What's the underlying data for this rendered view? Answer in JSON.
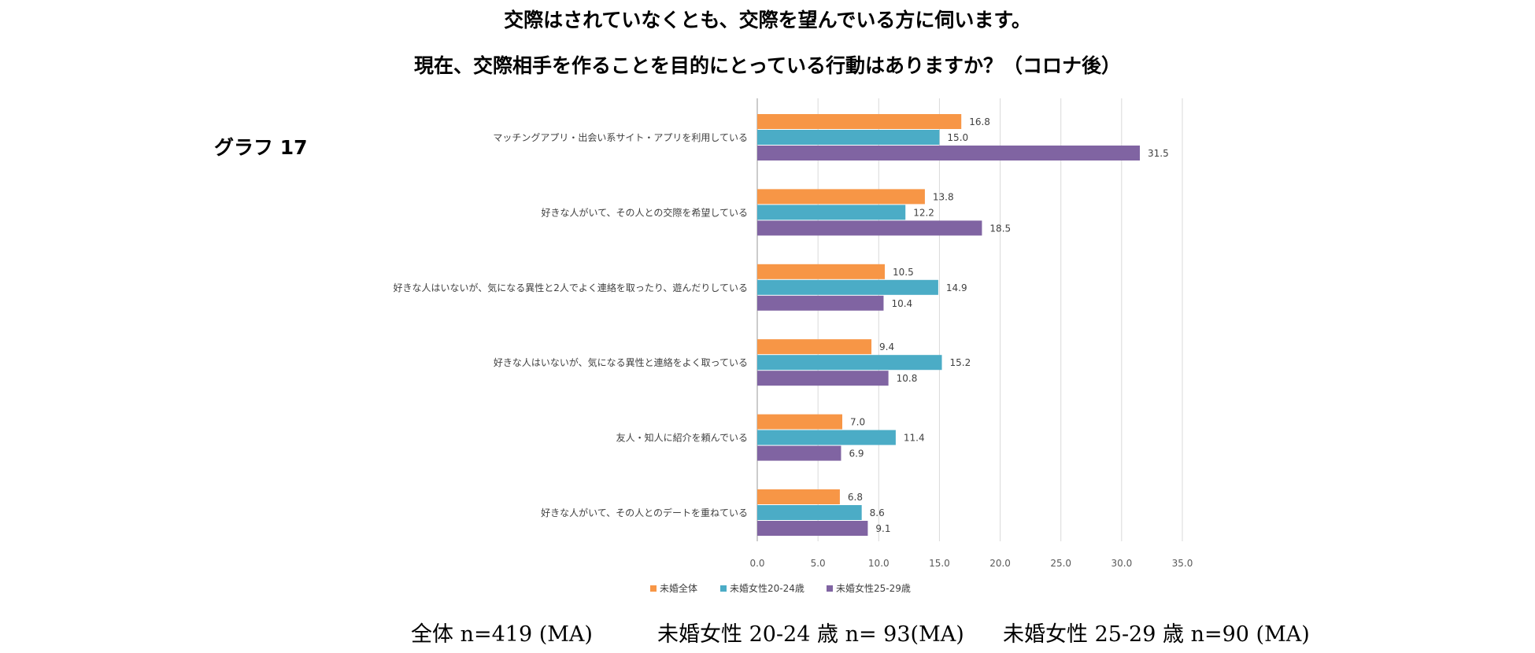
{
  "title_line1": "交際はされていなくとも、交際を望んでいる方に伺います。",
  "title_line2": "現在、交際相手を作ることを目的にとっている行動はありますか？（コロナ後）",
  "graph_label": "グラフ 17",
  "footer": [
    "全体 n=419 (MA)",
    "未婚女性 20-24 歳 n= 93(MA)",
    "未婚女性 25-29 歳 n=90 (MA)"
  ],
  "chart_data": {
    "type": "bar",
    "orientation": "horizontal",
    "title": "現在、交際相手を作ることを目的にとっている行動はありますか？（コロナ後）",
    "xlim": [
      0,
      35
    ],
    "xticks": [
      "0.0",
      "5.0",
      "10.0",
      "15.0",
      "20.0",
      "25.0",
      "30.0",
      "35.0"
    ],
    "grid": true,
    "legend_position": "bottom",
    "categories": [
      "マッチングアプリ・出会い系サイト・アプリを利用している",
      "好きな人がいて、その人との交際を希望している",
      "好きな人はいないが、気になる異性と2人でよく連絡を取ったり、遊んだりしている",
      "好きな人はいないが、気になる異性と連絡をよく取っている",
      "友人・知人に紹介を頼んでいる",
      "好きな人がいて、その人とのデートを重ねている"
    ],
    "series": [
      {
        "name": "未婚全体",
        "color": "#F79646",
        "values": [
          16.8,
          13.8,
          10.5,
          9.4,
          7.0,
          6.8
        ],
        "labels": [
          "16.8",
          "13.8",
          "10.5",
          "9.4",
          "7.0",
          "6.8"
        ]
      },
      {
        "name": "未婚女性20-24歳",
        "color": "#4BACC6",
        "values": [
          15.0,
          12.2,
          14.9,
          15.2,
          11.4,
          8.6
        ],
        "labels": [
          "15.0",
          "12.2",
          "14.9",
          "15.2",
          "11.4",
          "8.6"
        ]
      },
      {
        "name": "未婚女性25-29歳",
        "color": "#8064A2",
        "values": [
          31.5,
          18.5,
          10.4,
          10.8,
          6.9,
          9.1
        ],
        "labels": [
          "31.5",
          "18.5",
          "10.4",
          "10.8",
          "6.9",
          "9.1"
        ]
      }
    ]
  }
}
